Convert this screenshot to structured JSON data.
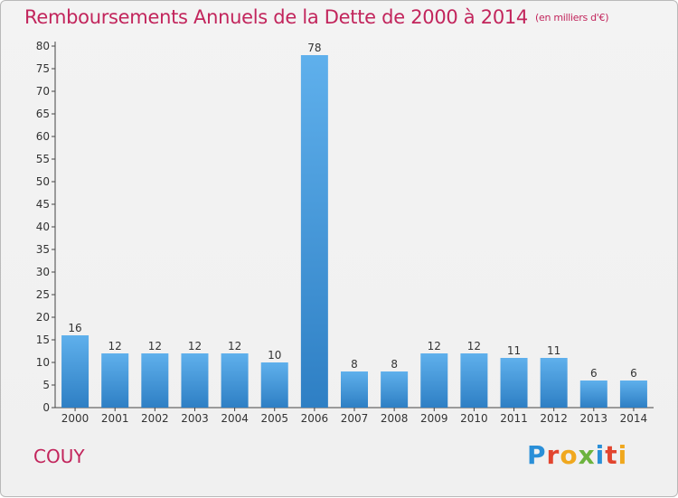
{
  "chart_data": {
    "type": "bar",
    "title": "Remboursements Annuels de la Dette de 2000 à 2014",
    "subtitle": "(en milliers d'€)",
    "categories": [
      "2000",
      "2001",
      "2002",
      "2003",
      "2004",
      "2005",
      "2006",
      "2007",
      "2008",
      "2009",
      "2010",
      "2011",
      "2012",
      "2013",
      "2014"
    ],
    "values": [
      16,
      12,
      12,
      12,
      12,
      10,
      78,
      8,
      8,
      12,
      12,
      11,
      11,
      6,
      6
    ],
    "data_labels": [
      "16",
      "12",
      "12",
      "12",
      "12",
      "10",
      "78",
      "8",
      "8",
      "12",
      "12",
      "11",
      "11",
      "6",
      "6"
    ],
    "ylim": [
      0,
      80
    ],
    "yticks": [
      0,
      5,
      10,
      15,
      20,
      25,
      30,
      35,
      40,
      45,
      50,
      55,
      60,
      65,
      70,
      75,
      80
    ],
    "grid": false,
    "bar_color": "#4a9fe0"
  },
  "footer": {
    "commune": "COUY",
    "logo_text": "Proxiti",
    "logo_colors": [
      "#2a8fd8",
      "#e2452f",
      "#f0a81e",
      "#6cb33e",
      "#2a8fd8",
      "#e2452f",
      "#f0a81e"
    ]
  },
  "colors": {
    "title": "#c2255c",
    "bar": "#4a9fe0"
  }
}
